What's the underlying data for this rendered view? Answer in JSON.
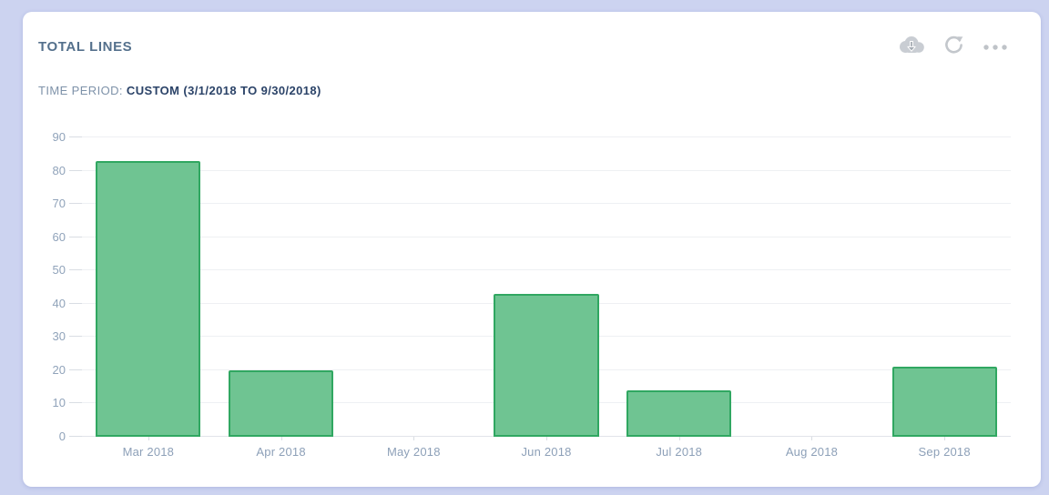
{
  "card": {
    "title": "TOTAL LINES",
    "subtitle_label": "TIME PERIOD:",
    "subtitle_value": "CUSTOM (3/1/2018 TO 9/30/2018)",
    "toolbar_icons": [
      "cloud-download-icon",
      "refresh-icon",
      "more-options-icon"
    ]
  },
  "colors": {
    "page_background": "#ccd3f0",
    "card_background": "#ffffff",
    "bar_fill": "#6fc492",
    "bar_border": "#30a761",
    "title_text": "#54708c",
    "subtitle_text": "#7e92a9",
    "subtitle_bold_text": "#2b4368",
    "axis_text": "#90a3ba",
    "gridline": "#eef0f3",
    "icon_gray": "#c3c7cc"
  },
  "chart_data": {
    "type": "bar",
    "categories": [
      "Mar 2018",
      "Apr 2018",
      "May 2018",
      "Jun 2018",
      "Jul 2018",
      "Aug 2018",
      "Sep 2018"
    ],
    "values": [
      83,
      20,
      0,
      43,
      14,
      0,
      21
    ],
    "title": "TOTAL LINES",
    "xlabel": "",
    "ylabel": "",
    "ylim": [
      0,
      90
    ],
    "ytick_step": 10,
    "grid": true,
    "legend": false
  }
}
